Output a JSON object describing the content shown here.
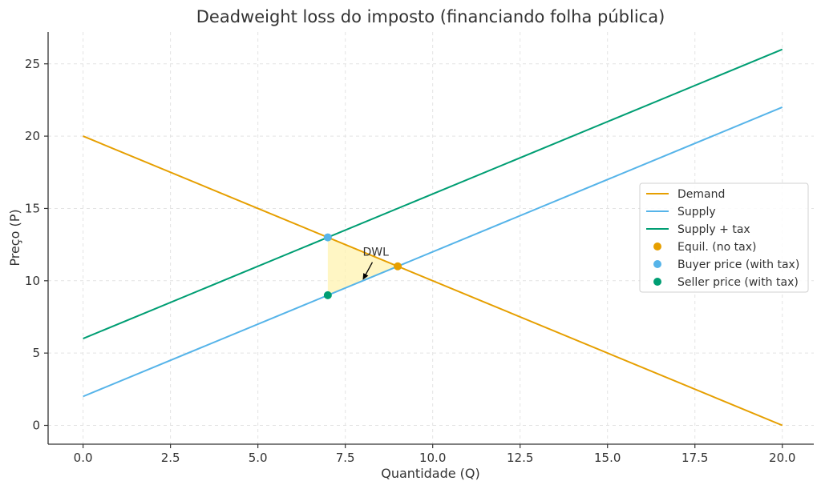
{
  "chart_data": {
    "type": "line",
    "title": "Deadweight loss do imposto (financiando folha pública)",
    "xlabel": "Quantidade (Q)",
    "ylabel": "Preço (P)",
    "xlim": [
      -1,
      20.9
    ],
    "ylim": [
      -1.3,
      27.2
    ],
    "xticks": [
      0,
      2.5,
      5,
      7.5,
      10,
      12.5,
      15,
      17.5,
      20
    ],
    "xtick_labels": [
      "0.0",
      "2.5",
      "5.0",
      "7.5",
      "10.0",
      "12.5",
      "15.0",
      "17.5",
      "20.0"
    ],
    "yticks": [
      0,
      5,
      10,
      15,
      20,
      25
    ],
    "ytick_labels": [
      "0",
      "5",
      "10",
      "15",
      "20",
      "25"
    ],
    "grid": true,
    "legend_position": "center-right",
    "series": [
      {
        "name": "Demand",
        "kind": "line",
        "color": "#E69F00",
        "x": [
          0,
          20
        ],
        "y": [
          20,
          0
        ]
      },
      {
        "name": "Supply",
        "kind": "line",
        "color": "#56B4E9",
        "x": [
          0,
          20
        ],
        "y": [
          2,
          22
        ]
      },
      {
        "name": "Supply + tax",
        "kind": "line",
        "color": "#009E73",
        "x": [
          0,
          20
        ],
        "y": [
          6,
          26
        ]
      }
    ],
    "points": [
      {
        "name": "Equil. (no tax)",
        "color": "#E69F00",
        "x": 9,
        "y": 11
      },
      {
        "name": "Buyer price (with tax)",
        "color": "#56B4E9",
        "x": 7,
        "y": 13
      },
      {
        "name": "Seller price (with tax)",
        "color": "#009E73",
        "x": 7,
        "y": 9
      }
    ],
    "dwl_region": {
      "color": "#FFF3B0",
      "x": [
        7,
        7,
        9
      ],
      "y": [
        13,
        9,
        11
      ]
    },
    "annotation": {
      "text": "DWL",
      "text_x": 8,
      "text_y": 12,
      "arrow_x": 8,
      "arrow_y": 10
    }
  }
}
